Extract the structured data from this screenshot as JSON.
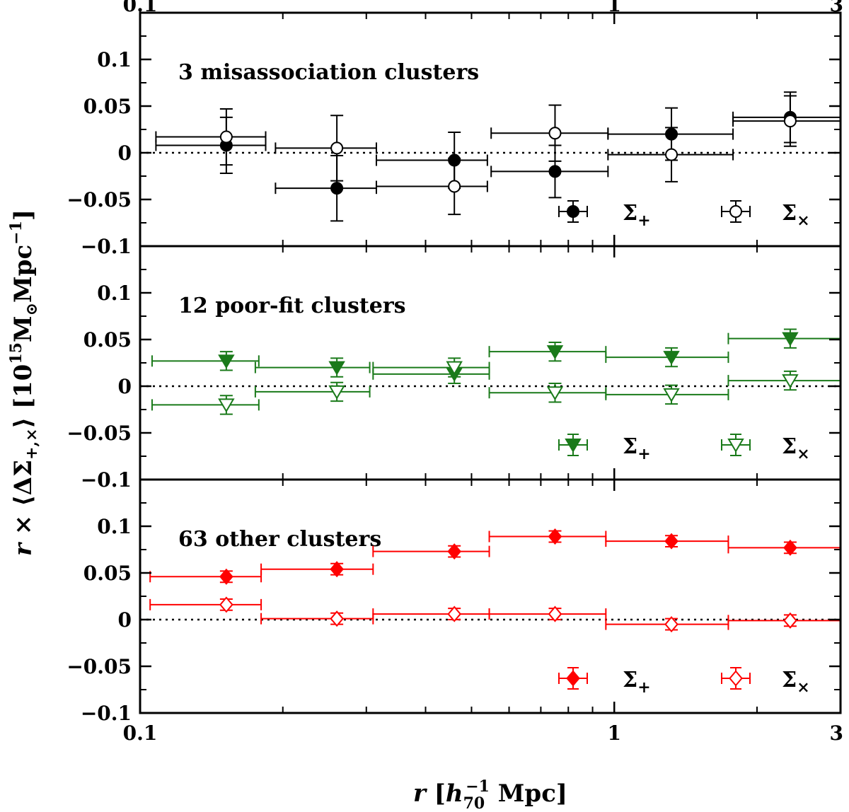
{
  "chart_data": {
    "type": "scatter",
    "xscale": "log",
    "xlim": [
      0.1,
      3.0
    ],
    "ylim": [
      -0.1,
      0.15
    ],
    "xlabel": "r [h70⁻¹ Mpc]",
    "ylabel": "r × ⟨ΔΣ+,×⟩ [10¹⁵ M⊙ Mpc⁻¹]",
    "xticks_bottom": [
      {
        "value": 0.1,
        "label": "0.1"
      },
      {
        "value": 1,
        "label": "1"
      },
      {
        "value": 3,
        "label": "3"
      }
    ],
    "xticks_top": [
      {
        "value": 0.1,
        "label": "0.1"
      },
      {
        "value": 1,
        "label": "1"
      },
      {
        "value": 3,
        "label": "3"
      }
    ],
    "yticks": [
      {
        "value": -0.1,
        "label": "−0.1"
      },
      {
        "value": -0.05,
        "label": "−0.05"
      },
      {
        "value": 0,
        "label": "0"
      },
      {
        "value": 0.05,
        "label": "0.05"
      },
      {
        "value": 0.1,
        "label": "0.1"
      }
    ],
    "panels": [
      {
        "label": "3 misassociation clusters",
        "color": "#000000",
        "series": [
          {
            "name": "Σ+",
            "marker": "circle",
            "filled": true,
            "points": [
              {
                "x": 0.152,
                "y": 0.008,
                "xlo": 0.108,
                "xhi": 0.184,
                "yerr": 0.03
              },
              {
                "x": 0.26,
                "y": -0.038,
                "xlo": 0.193,
                "xhi": 0.315,
                "yerr": 0.035
              },
              {
                "x": 0.46,
                "y": -0.008,
                "xlo": 0.315,
                "xhi": 0.54,
                "yerr": 0.03
              },
              {
                "x": 0.75,
                "y": -0.02,
                "xlo": 0.55,
                "xhi": 0.97,
                "yerr": 0.028
              },
              {
                "x": 1.32,
                "y": 0.02,
                "xlo": 0.97,
                "xhi": 1.78,
                "yerr": 0.028
              },
              {
                "x": 2.35,
                "y": 0.038,
                "xlo": 1.78,
                "xhi": 3.0,
                "yerr": 0.027
              }
            ]
          },
          {
            "name": "Σ×",
            "marker": "circle",
            "filled": false,
            "points": [
              {
                "x": 0.152,
                "y": 0.017,
                "xlo": 0.108,
                "xhi": 0.184,
                "yerr": 0.03
              },
              {
                "x": 0.26,
                "y": 0.005,
                "xlo": 0.193,
                "xhi": 0.315,
                "yerr": 0.035
              },
              {
                "x": 0.46,
                "y": -0.036,
                "xlo": 0.315,
                "xhi": 0.54,
                "yerr": 0.03
              },
              {
                "x": 0.75,
                "y": 0.021,
                "xlo": 0.55,
                "xhi": 0.97,
                "yerr": 0.03
              },
              {
                "x": 1.32,
                "y": -0.002,
                "xlo": 0.97,
                "xhi": 1.78,
                "yerr": 0.029
              },
              {
                "x": 2.35,
                "y": 0.034,
                "xlo": 1.78,
                "xhi": 3.0,
                "yerr": 0.027
              }
            ]
          }
        ],
        "legend": [
          {
            "text": "Σ+",
            "marker": "circle",
            "filled": true
          },
          {
            "text": "Σ×",
            "marker": "circle",
            "filled": false
          }
        ]
      },
      {
        "label": "12 poor-fit clusters",
        "color": "#1a7a1a",
        "series": [
          {
            "name": "Σ+",
            "marker": "triangle-down",
            "filled": true,
            "points": [
              {
                "x": 0.152,
                "y": 0.027,
                "xlo": 0.106,
                "xhi": 0.178,
                "yerr": 0.01
              },
              {
                "x": 0.26,
                "y": 0.02,
                "xlo": 0.175,
                "xhi": 0.305,
                "yerr": 0.01
              },
              {
                "x": 0.46,
                "y": 0.013,
                "xlo": 0.31,
                "xhi": 0.545,
                "yerr": 0.01
              },
              {
                "x": 0.75,
                "y": 0.037,
                "xlo": 0.545,
                "xhi": 0.96,
                "yerr": 0.01
              },
              {
                "x": 1.32,
                "y": 0.031,
                "xlo": 0.96,
                "xhi": 1.74,
                "yerr": 0.01
              },
              {
                "x": 2.35,
                "y": 0.051,
                "xlo": 1.74,
                "xhi": 3.0,
                "yerr": 0.01
              }
            ]
          },
          {
            "name": "Σ×",
            "marker": "triangle-down",
            "filled": false,
            "points": [
              {
                "x": 0.152,
                "y": -0.02,
                "xlo": 0.106,
                "xhi": 0.178,
                "yerr": 0.01
              },
              {
                "x": 0.26,
                "y": -0.006,
                "xlo": 0.175,
                "xhi": 0.305,
                "yerr": 0.01
              },
              {
                "x": 0.46,
                "y": 0.02,
                "xlo": 0.31,
                "xhi": 0.545,
                "yerr": 0.01
              },
              {
                "x": 0.75,
                "y": -0.007,
                "xlo": 0.545,
                "xhi": 0.96,
                "yerr": 0.01
              },
              {
                "x": 1.32,
                "y": -0.009,
                "xlo": 0.96,
                "xhi": 1.74,
                "yerr": 0.01
              },
              {
                "x": 2.35,
                "y": 0.006,
                "xlo": 1.74,
                "xhi": 3.0,
                "yerr": 0.01
              }
            ]
          }
        ],
        "legend": [
          {
            "text": "Σ+",
            "marker": "triangle-down",
            "filled": true
          },
          {
            "text": "Σ×",
            "marker": "triangle-down",
            "filled": false
          }
        ]
      },
      {
        "label": "63 other clusters",
        "color": "#ff0000",
        "series": [
          {
            "name": "Σ+",
            "marker": "diamond",
            "filled": true,
            "points": [
              {
                "x": 0.152,
                "y": 0.046,
                "xlo": 0.105,
                "xhi": 0.18,
                "yerr": 0.006
              },
              {
                "x": 0.26,
                "y": 0.054,
                "xlo": 0.18,
                "xhi": 0.31,
                "yerr": 0.006
              },
              {
                "x": 0.46,
                "y": 0.073,
                "xlo": 0.31,
                "xhi": 0.545,
                "yerr": 0.006
              },
              {
                "x": 0.75,
                "y": 0.089,
                "xlo": 0.545,
                "xhi": 0.96,
                "yerr": 0.006
              },
              {
                "x": 1.32,
                "y": 0.084,
                "xlo": 0.96,
                "xhi": 1.74,
                "yerr": 0.006
              },
              {
                "x": 2.35,
                "y": 0.077,
                "xlo": 1.74,
                "xhi": 3.0,
                "yerr": 0.006
              }
            ]
          },
          {
            "name": "Σ×",
            "marker": "diamond",
            "filled": false,
            "points": [
              {
                "x": 0.152,
                "y": 0.016,
                "xlo": 0.105,
                "xhi": 0.18,
                "yerr": 0.006
              },
              {
                "x": 0.26,
                "y": 0.001,
                "xlo": 0.18,
                "xhi": 0.31,
                "yerr": 0.006
              },
              {
                "x": 0.46,
                "y": 0.006,
                "xlo": 0.31,
                "xhi": 0.545,
                "yerr": 0.006
              },
              {
                "x": 0.75,
                "y": 0.006,
                "xlo": 0.545,
                "xhi": 0.96,
                "yerr": 0.006
              },
              {
                "x": 1.32,
                "y": -0.005,
                "xlo": 0.96,
                "xhi": 1.74,
                "yerr": 0.006
              },
              {
                "x": 2.35,
                "y": -0.001,
                "xlo": 1.74,
                "xhi": 3.0,
                "yerr": 0.006
              }
            ]
          }
        ],
        "legend": [
          {
            "text": "Σ+",
            "marker": "diamond",
            "filled": true
          },
          {
            "text": "Σ×",
            "marker": "diamond",
            "filled": false
          }
        ]
      }
    ]
  }
}
